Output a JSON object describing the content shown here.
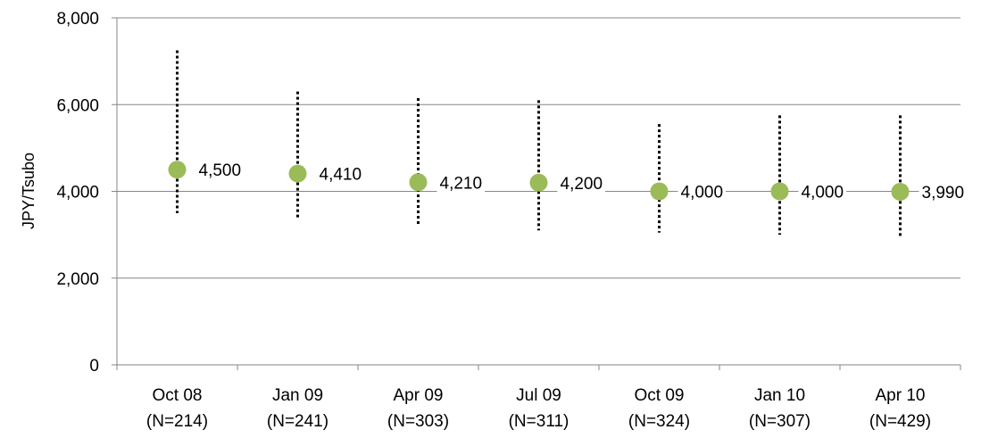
{
  "chart_data": {
    "type": "scatter",
    "ylabel": "JPY/Tsubo",
    "xlabel": "",
    "ylim": [
      0,
      8000
    ],
    "yticks": [
      0,
      2000,
      4000,
      6000,
      8000
    ],
    "ytick_labels": [
      "0",
      "2,000",
      "4,000",
      "6,000",
      "8,000"
    ],
    "grid": true,
    "legend": "none",
    "categories": [
      [
        "Oct 08",
        "(N=214)"
      ],
      [
        "Jan 09",
        "(N=241)"
      ],
      [
        "Apr 09",
        "(N=303)"
      ],
      [
        "Jul 09",
        "(N=311)"
      ],
      [
        "Oct 09",
        "(N=324)"
      ],
      [
        "Jan 10",
        "(N=307)"
      ],
      [
        "Apr 10",
        "(N=429)"
      ]
    ],
    "values": [
      4500,
      4410,
      4210,
      4200,
      4000,
      4000,
      3990
    ],
    "value_labels": [
      "4,500",
      "4,410",
      "4,210",
      "4,200",
      "4,000",
      "4,000",
      "3,990"
    ],
    "range_high": [
      7250,
      6300,
      6150,
      6100,
      5550,
      5750,
      5750
    ],
    "range_low": [
      3500,
      3350,
      3200,
      3100,
      3050,
      3000,
      2950
    ],
    "colors": {
      "marker": "#9BBB59",
      "range_line": "#000000",
      "grid": "#868686",
      "axis": "#868686"
    }
  }
}
